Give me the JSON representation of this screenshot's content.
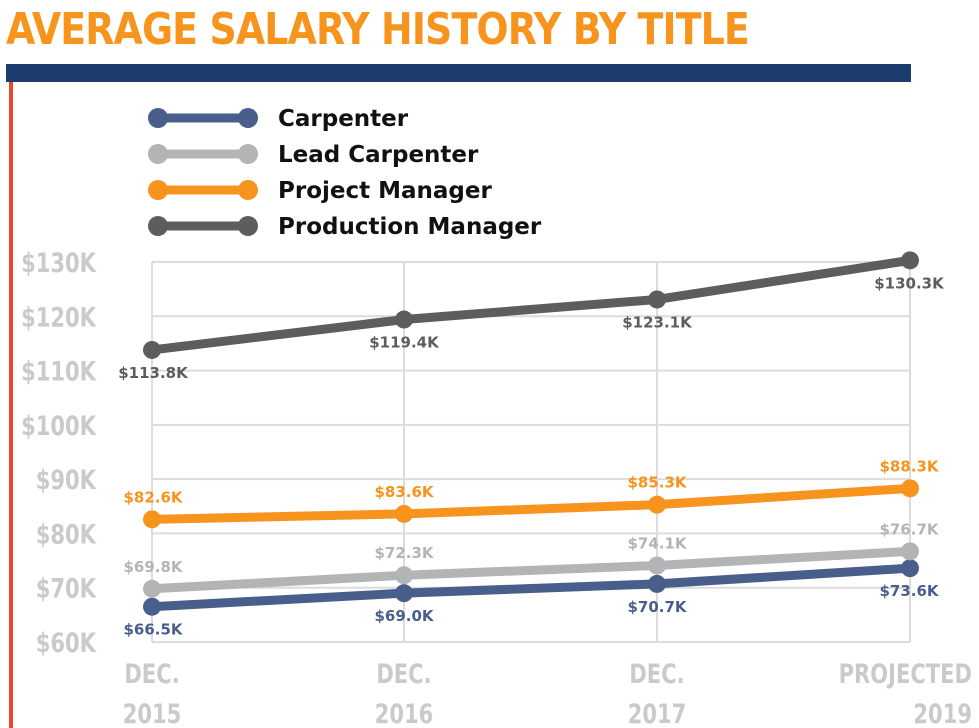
{
  "chart_data": {
    "type": "line",
    "title": "AVERAGE SALARY HISTORY BY TITLE",
    "categories": [
      [
        "DEC.",
        "2015"
      ],
      [
        "DEC.",
        "2016"
      ],
      [
        "DEC.",
        "2017"
      ],
      [
        "PROJECTED",
        "2019"
      ]
    ],
    "ylim": [
      60,
      130
    ],
    "yticks": [
      {
        "value": 130,
        "label": "$130K"
      },
      {
        "value": 120,
        "label": "$120K"
      },
      {
        "value": 110,
        "label": "$110K"
      },
      {
        "value": 100,
        "label": "$100K"
      },
      {
        "value": 90,
        "label": "$90K"
      },
      {
        "value": 80,
        "label": "$80K"
      },
      {
        "value": 70,
        "label": "$70K"
      },
      {
        "value": 60,
        "label": "$60K"
      }
    ],
    "grid": true,
    "legend": "top-left",
    "series": [
      {
        "name": "Carpenter",
        "color": "#4a5e8c",
        "values": [
          66.5,
          69.0,
          70.7,
          73.6
        ],
        "labels": [
          "$66.5K",
          "$69.0K",
          "$70.7K",
          "$73.6K"
        ],
        "label_position": "below"
      },
      {
        "name": "Lead Carpenter",
        "color": "#b3b4b6",
        "values": [
          69.8,
          72.3,
          74.1,
          76.7
        ],
        "labels": [
          "$69.8K",
          "$72.3K",
          "$74.1K",
          "$76.7K"
        ],
        "label_position": "above"
      },
      {
        "name": "Project Manager",
        "color": "#f7941d",
        "values": [
          82.6,
          83.6,
          85.3,
          88.3
        ],
        "labels": [
          "$82.6K",
          "$83.6K",
          "$85.3K",
          "$88.3K"
        ],
        "label_position": "above"
      },
      {
        "name": "Production Manager",
        "color": "#5d5d5f",
        "values": [
          113.8,
          119.4,
          123.1,
          130.3
        ],
        "labels": [
          "$113.8K",
          "$119.4K",
          "$123.1K",
          "$130.3K"
        ],
        "label_position": "below"
      }
    ]
  }
}
